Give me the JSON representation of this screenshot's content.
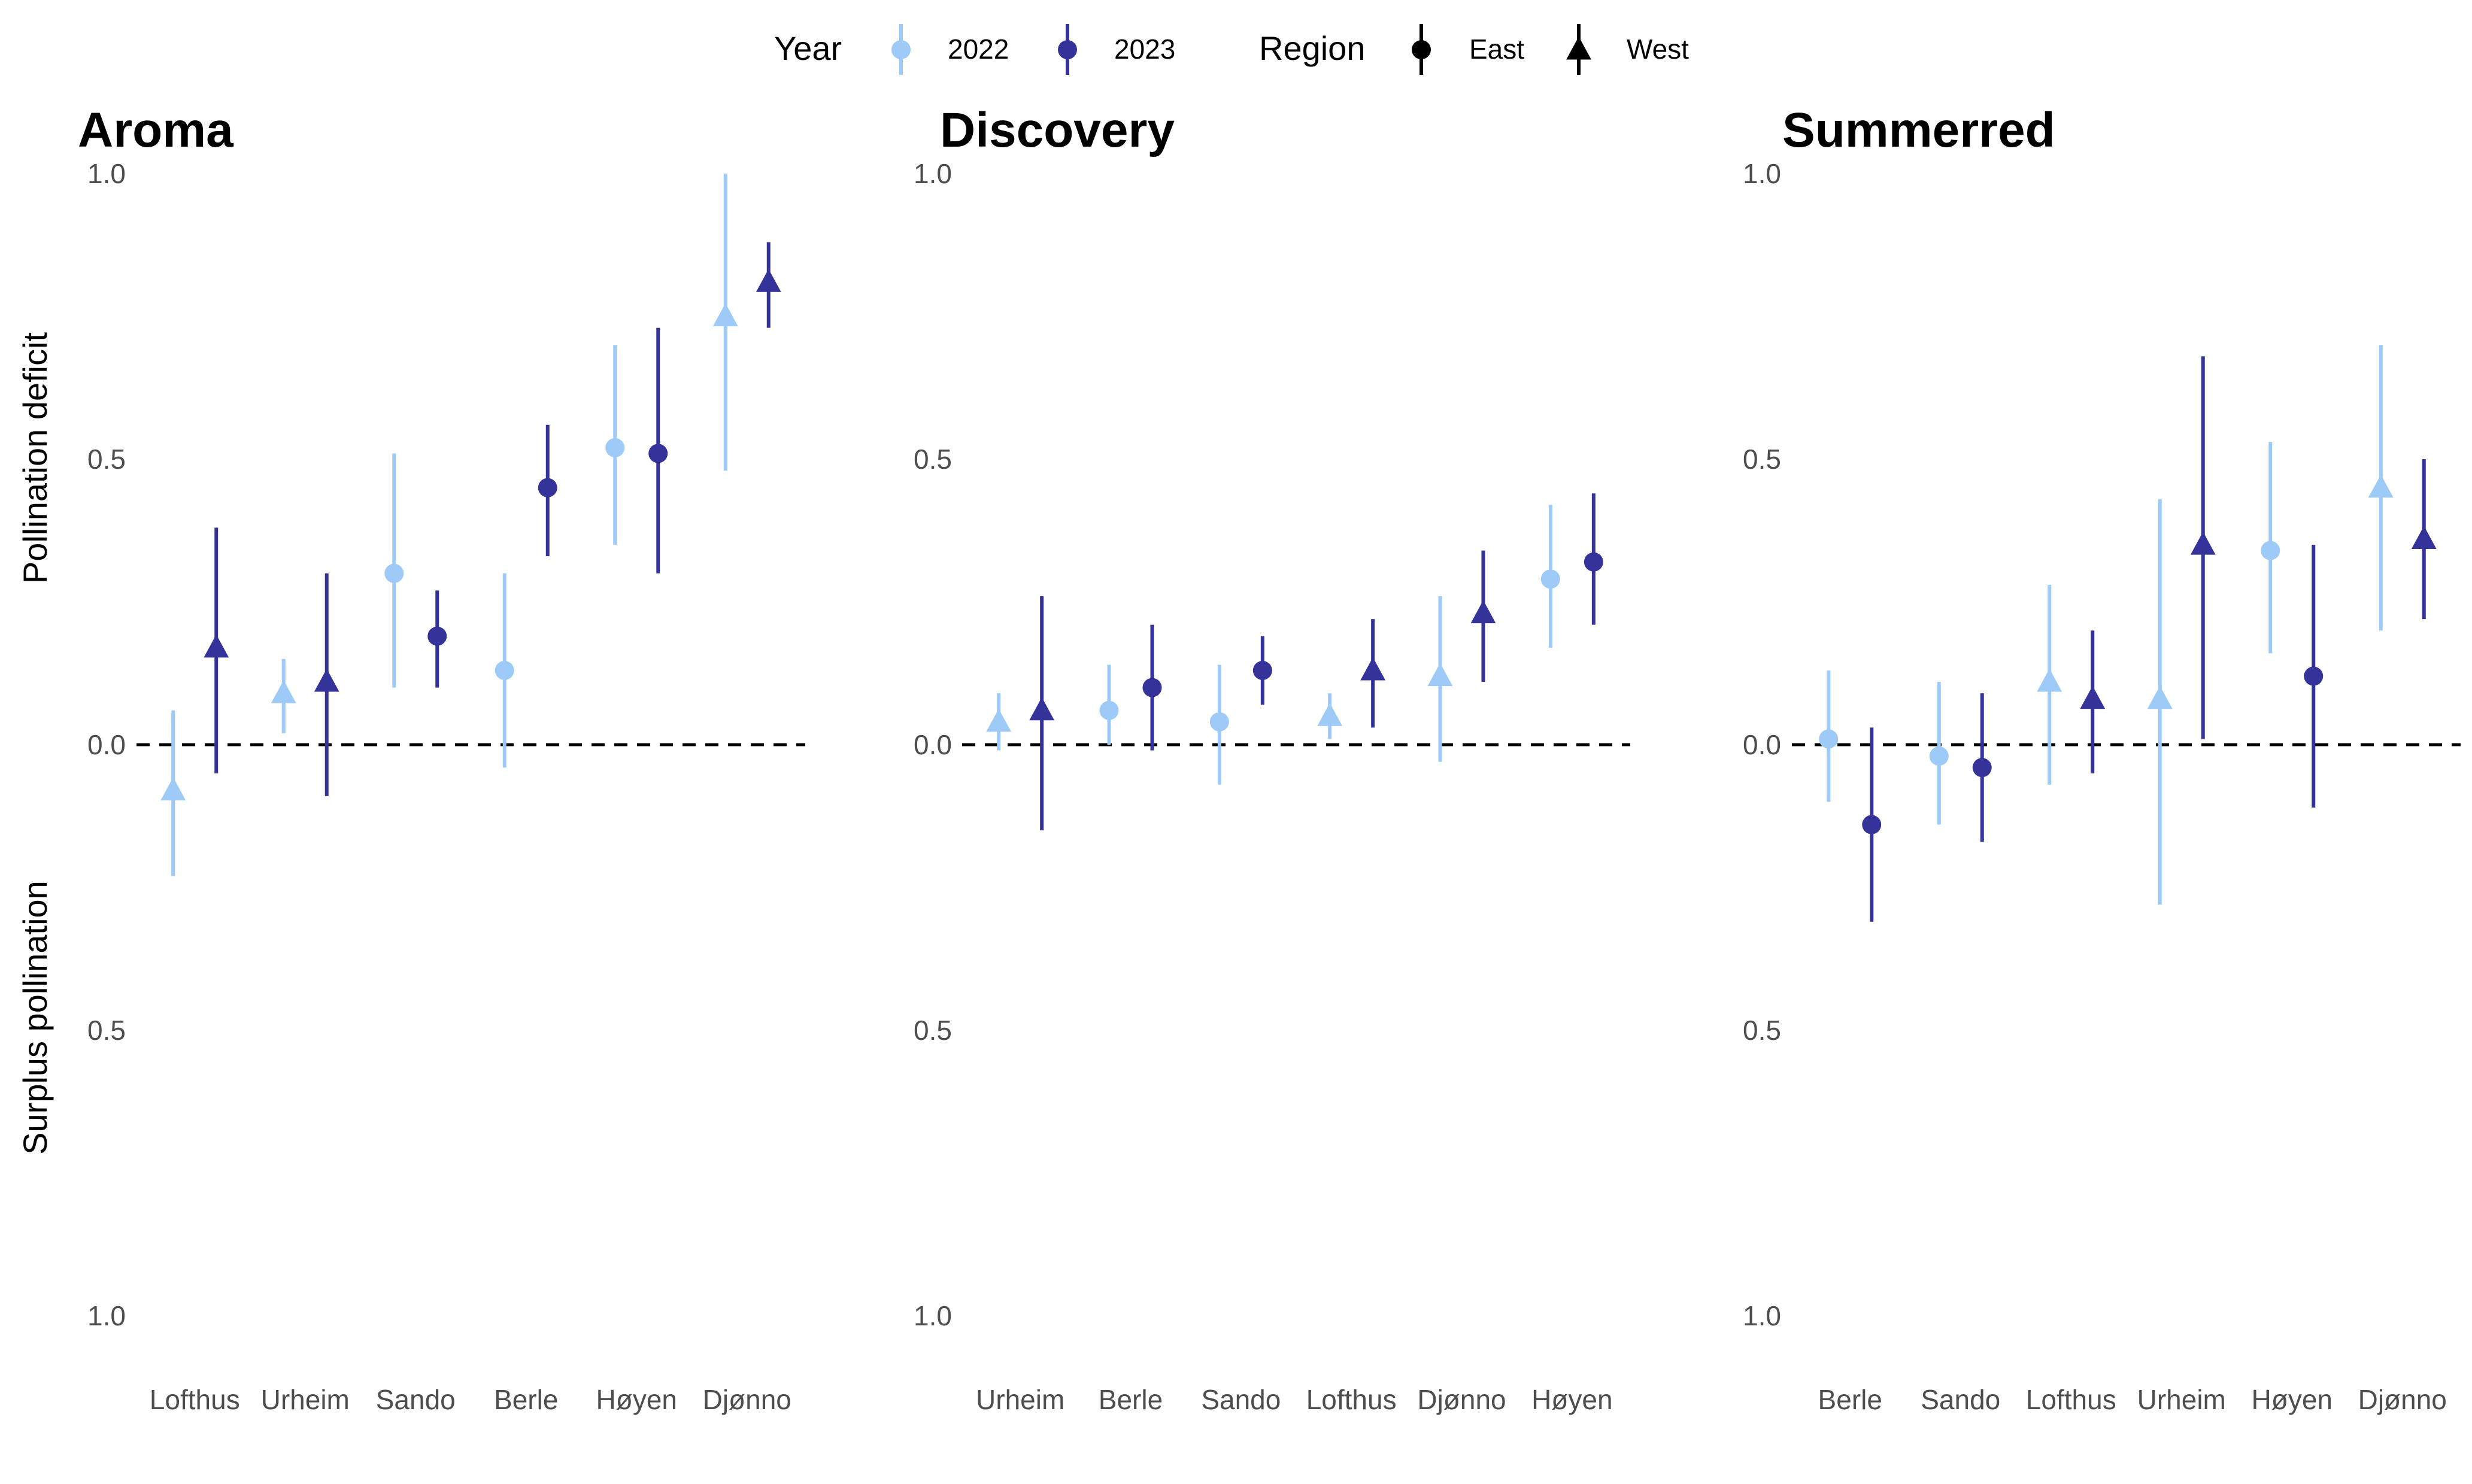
{
  "legend": {
    "year_title": "Year",
    "region_title": "Region",
    "years": [
      {
        "label": "2022",
        "color": "#9ECAF8"
      },
      {
        "label": "2023",
        "color": "#33339A"
      }
    ],
    "regions": [
      {
        "label": "East",
        "shape": "circle"
      },
      {
        "label": "West",
        "shape": "triangle"
      }
    ]
  },
  "ylabel_top": "Pollination deficit",
  "ylabel_bottom": "Surplus pollination",
  "chart_data": [
    {
      "type": "scatter",
      "title": "Aroma",
      "ylim": [
        -1.0,
        1.0
      ],
      "yticks": [
        1.0,
        0.5,
        0.0,
        -0.5,
        -1.0
      ],
      "ytick_labels": [
        "1.0",
        "0.5",
        "0.0",
        "0.5",
        "1.0"
      ],
      "reference_line": 0.0,
      "categories": [
        "Lofthus",
        "Urheim",
        "Sando",
        "Berle",
        "Høyen",
        "Djønno"
      ],
      "points": [
        {
          "site": "Lofthus",
          "year": "2022",
          "region": "West",
          "y": -0.08,
          "lo": -0.23,
          "hi": 0.06
        },
        {
          "site": "Lofthus",
          "year": "2023",
          "region": "West",
          "y": 0.17,
          "lo": -0.05,
          "hi": 0.38
        },
        {
          "site": "Urheim",
          "year": "2022",
          "region": "West",
          "y": 0.09,
          "lo": 0.02,
          "hi": 0.15
        },
        {
          "site": "Urheim",
          "year": "2023",
          "region": "West",
          "y": 0.11,
          "lo": -0.09,
          "hi": 0.3
        },
        {
          "site": "Sando",
          "year": "2022",
          "region": "East",
          "y": 0.3,
          "lo": 0.1,
          "hi": 0.51
        },
        {
          "site": "Sando",
          "year": "2023",
          "region": "East",
          "y": 0.19,
          "lo": 0.1,
          "hi": 0.27
        },
        {
          "site": "Berle",
          "year": "2022",
          "region": "East",
          "y": 0.13,
          "lo": -0.04,
          "hi": 0.3
        },
        {
          "site": "Berle",
          "year": "2023",
          "region": "East",
          "y": 0.45,
          "lo": 0.33,
          "hi": 0.56
        },
        {
          "site": "Høyen",
          "year": "2022",
          "region": "East",
          "y": 0.52,
          "lo": 0.35,
          "hi": 0.7
        },
        {
          "site": "Høyen",
          "year": "2023",
          "region": "East",
          "y": 0.51,
          "lo": 0.3,
          "hi": 0.73
        },
        {
          "site": "Djønno",
          "year": "2022",
          "region": "West",
          "y": 0.75,
          "lo": 0.48,
          "hi": 1.0
        },
        {
          "site": "Djønno",
          "year": "2023",
          "region": "West",
          "y": 0.81,
          "lo": 0.73,
          "hi": 0.88
        }
      ]
    },
    {
      "type": "scatter",
      "title": "Discovery",
      "ylim": [
        -1.0,
        1.0
      ],
      "yticks": [
        1.0,
        0.5,
        0.0,
        -0.5,
        -1.0
      ],
      "ytick_labels": [
        "1.0",
        "0.5",
        "0.0",
        "0.5",
        "1.0"
      ],
      "reference_line": 0.0,
      "categories": [
        "Urheim",
        "Berle",
        "Sando",
        "Lofthus",
        "Djønno",
        "Høyen"
      ],
      "points": [
        {
          "site": "Urheim",
          "year": "2022",
          "region": "West",
          "y": 0.04,
          "lo": -0.01,
          "hi": 0.09
        },
        {
          "site": "Urheim",
          "year": "2023",
          "region": "West",
          "y": 0.06,
          "lo": -0.15,
          "hi": 0.26
        },
        {
          "site": "Berle",
          "year": "2022",
          "region": "East",
          "y": 0.06,
          "lo": 0.0,
          "hi": 0.14
        },
        {
          "site": "Berle",
          "year": "2023",
          "region": "East",
          "y": 0.1,
          "lo": -0.01,
          "hi": 0.21
        },
        {
          "site": "Sando",
          "year": "2022",
          "region": "East",
          "y": 0.04,
          "lo": -0.07,
          "hi": 0.14
        },
        {
          "site": "Sando",
          "year": "2023",
          "region": "East",
          "y": 0.13,
          "lo": 0.07,
          "hi": 0.19
        },
        {
          "site": "Lofthus",
          "year": "2022",
          "region": "West",
          "y": 0.05,
          "lo": 0.01,
          "hi": 0.09
        },
        {
          "site": "Lofthus",
          "year": "2023",
          "region": "West",
          "y": 0.13,
          "lo": 0.03,
          "hi": 0.22
        },
        {
          "site": "Djønno",
          "year": "2022",
          "region": "West",
          "y": 0.12,
          "lo": -0.03,
          "hi": 0.26
        },
        {
          "site": "Djønno",
          "year": "2023",
          "region": "West",
          "y": 0.23,
          "lo": 0.11,
          "hi": 0.34
        },
        {
          "site": "Høyen",
          "year": "2022",
          "region": "East",
          "y": 0.29,
          "lo": 0.17,
          "hi": 0.42
        },
        {
          "site": "Høyen",
          "year": "2023",
          "region": "East",
          "y": 0.32,
          "lo": 0.21,
          "hi": 0.44
        }
      ]
    },
    {
      "type": "scatter",
      "title": "Summerred",
      "ylim": [
        -1.0,
        1.0
      ],
      "yticks": [
        1.0,
        0.5,
        0.0,
        -0.5,
        -1.0
      ],
      "ytick_labels": [
        "1.0",
        "0.5",
        "0.0",
        "0.5",
        "1.0"
      ],
      "reference_line": 0.0,
      "categories": [
        "Berle",
        "Sando",
        "Lofthus",
        "Urheim",
        "Høyen",
        "Djønno"
      ],
      "points": [
        {
          "site": "Berle",
          "year": "2022",
          "region": "East",
          "y": 0.01,
          "lo": -0.1,
          "hi": 0.13
        },
        {
          "site": "Berle",
          "year": "2023",
          "region": "East",
          "y": -0.14,
          "lo": -0.31,
          "hi": 0.03
        },
        {
          "site": "Sando",
          "year": "2022",
          "region": "East",
          "y": -0.02,
          "lo": -0.14,
          "hi": 0.11
        },
        {
          "site": "Sando",
          "year": "2023",
          "region": "East",
          "y": -0.04,
          "lo": -0.17,
          "hi": 0.09
        },
        {
          "site": "Lofthus",
          "year": "2022",
          "region": "West",
          "y": 0.11,
          "lo": -0.07,
          "hi": 0.28
        },
        {
          "site": "Lofthus",
          "year": "2023",
          "region": "West",
          "y": 0.08,
          "lo": -0.05,
          "hi": 0.2
        },
        {
          "site": "Urheim",
          "year": "2022",
          "region": "West",
          "y": 0.08,
          "lo": -0.28,
          "hi": 0.43
        },
        {
          "site": "Urheim",
          "year": "2023",
          "region": "West",
          "y": 0.35,
          "lo": 0.01,
          "hi": 0.68
        },
        {
          "site": "Høyen",
          "year": "2022",
          "region": "East",
          "y": 0.34,
          "lo": 0.16,
          "hi": 0.53
        },
        {
          "site": "Høyen",
          "year": "2023",
          "region": "East",
          "y": 0.12,
          "lo": -0.11,
          "hi": 0.35
        },
        {
          "site": "Djønno",
          "year": "2022",
          "region": "West",
          "y": 0.45,
          "lo": 0.2,
          "hi": 0.7
        },
        {
          "site": "Djønno",
          "year": "2023",
          "region": "West",
          "y": 0.36,
          "lo": 0.22,
          "hi": 0.5
        }
      ]
    }
  ]
}
